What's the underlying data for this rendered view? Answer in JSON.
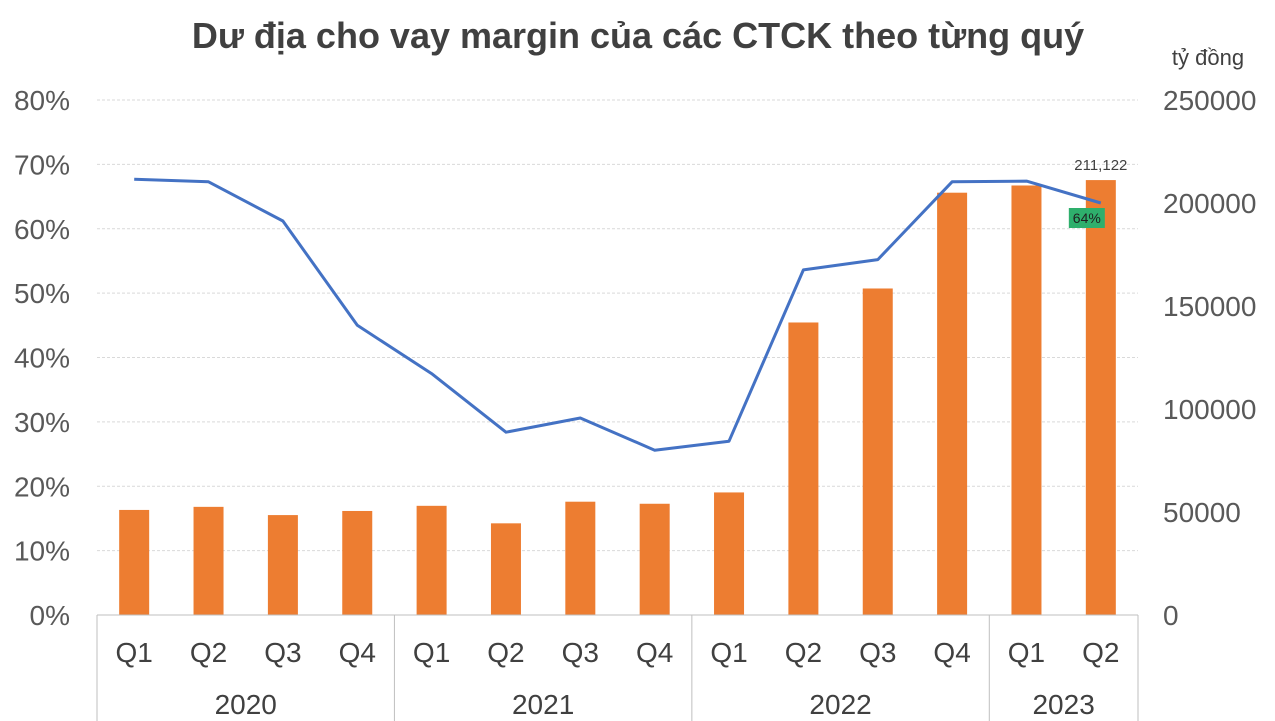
{
  "chart_data": {
    "type": "bar",
    "title": "Dư địa cho vay margin của các CTCK theo từng quý",
    "y2label": "tỷ đồng",
    "categories": [
      "Q1",
      "Q2",
      "Q3",
      "Q4",
      "Q1",
      "Q2",
      "Q3",
      "Q4",
      "Q1",
      "Q2",
      "Q3",
      "Q4",
      "Q1",
      "Q2"
    ],
    "groups": [
      {
        "label": "2020",
        "count": 4
      },
      {
        "label": "2021",
        "count": 4
      },
      {
        "label": "2022",
        "count": 4
      },
      {
        "label": "2023",
        "count": 2
      }
    ],
    "series": [
      {
        "kind": "bar",
        "axis": "right",
        "color": "#ED7D31",
        "values": [
          51000,
          52500,
          48500,
          50500,
          53000,
          44500,
          55000,
          54000,
          59500,
          142000,
          158500,
          205000,
          208500,
          211122
        ]
      },
      {
        "kind": "line",
        "axis": "left",
        "color": "#4472C4",
        "values": [
          67.7,
          67.3,
          61.2,
          45.0,
          37.5,
          28.4,
          30.6,
          25.6,
          27.0,
          53.6,
          55.2,
          67.3,
          67.4,
          64.0
        ]
      }
    ],
    "ylim_left": [
      0,
      80
    ],
    "ytick_left": [
      "0%",
      "10%",
      "20%",
      "30%",
      "40%",
      "50%",
      "60%",
      "70%",
      "80%"
    ],
    "ylim_right": [
      0,
      250000
    ],
    "ytick_right": [
      "0",
      "50000",
      "100000",
      "150000",
      "200000",
      "250000"
    ],
    "data_labels": {
      "last_bar": "211,122",
      "last_line": "64%"
    },
    "label_color": "#2EAF6C",
    "grid": true
  }
}
